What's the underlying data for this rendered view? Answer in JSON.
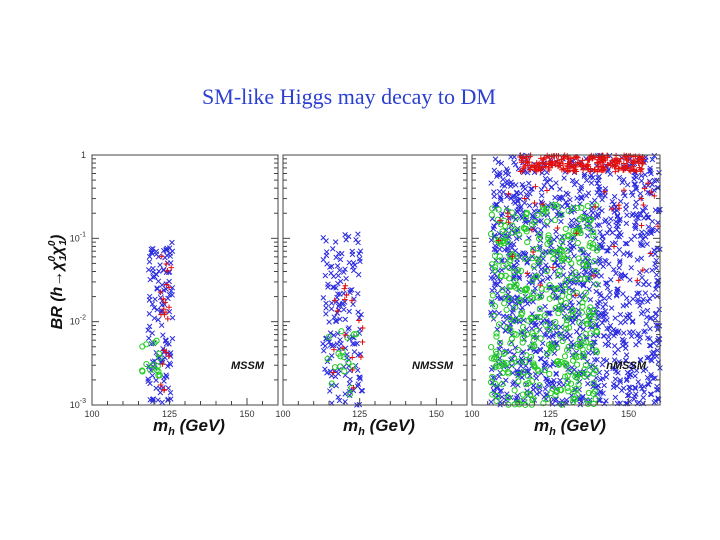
{
  "slide_title": "SM-like Higgs may decay to DM",
  "colors": {
    "title": "#2b3fd0",
    "blue": "#2a2ae0",
    "green": "#22cc22",
    "red": "#e01010"
  },
  "chart_data": {
    "type": "scatter",
    "y_label": {
      "main": "BR (h",
      "arrow": "→",
      "chi": "χ",
      "sub": "1",
      "sup": "0"
    },
    "x_label": {
      "m": "m",
      "sub": "h",
      "unit": " (GeV)"
    },
    "x_ticks": [
      "100",
      "125",
      "150"
    ],
    "y_ticks": [
      {
        "base": "1",
        "exp": ""
      },
      {
        "base": "10",
        "exp": "-1"
      },
      {
        "base": "10",
        "exp": "-2"
      },
      {
        "base": "10",
        "exp": "-3"
      }
    ],
    "xlim": [
      100,
      160
    ],
    "ylim_log10": [
      -3,
      0
    ],
    "y_scale": "log",
    "series_legend": [
      "blue x",
      "green o",
      "red +"
    ],
    "panels": [
      {
        "name": "MSSM",
        "clusters": [
          {
            "marker": "x",
            "color": "blue",
            "n": 130,
            "x": [
              118,
              126
            ],
            "logy": [
              -3.0,
              -1.05
            ],
            "seed": 11
          },
          {
            "marker": "o",
            "color": "green",
            "n": 16,
            "x": [
              116,
              122
            ],
            "logy": [
              -3.0,
              -2.2
            ],
            "seed": 12
          },
          {
            "marker": "+",
            "color": "red",
            "n": 22,
            "x": [
              122,
              126
            ],
            "logy": [
              -2.9,
              -1.1
            ],
            "seed": 13
          }
        ]
      },
      {
        "name": "NMSSM",
        "clusters": [
          {
            "marker": "x",
            "color": "blue",
            "n": 160,
            "x": [
              113,
              126
            ],
            "logy": [
              -3.0,
              -0.95
            ],
            "seed": 21
          },
          {
            "marker": "o",
            "color": "green",
            "n": 18,
            "x": [
              113,
              124
            ],
            "logy": [
              -3.0,
              -2.1
            ],
            "seed": 22
          },
          {
            "marker": "+",
            "color": "red",
            "n": 18,
            "x": [
              116,
              126
            ],
            "logy": [
              -2.9,
              -1.4
            ],
            "seed": 23
          }
        ]
      },
      {
        "name": "nMSSM",
        "clusters": [
          {
            "marker": "x",
            "color": "blue",
            "n": 1300,
            "x": [
              106,
              160
            ],
            "logy": [
              -3.0,
              0.0
            ],
            "seed": 31
          },
          {
            "marker": "o",
            "color": "green",
            "n": 420,
            "x": [
              106,
              140
            ],
            "logy": [
              -3.0,
              -0.6
            ],
            "seed": 32
          },
          {
            "marker": "+",
            "color": "red",
            "n": 260,
            "x": [
              115,
              155
            ],
            "logy": [
              -0.2,
              0.0
            ],
            "seed": 33
          },
          {
            "marker": "+",
            "color": "red",
            "n": 40,
            "x": [
              108,
              160
            ],
            "logy": [
              -1.7,
              -0.3
            ],
            "seed": 34
          }
        ]
      }
    ]
  }
}
